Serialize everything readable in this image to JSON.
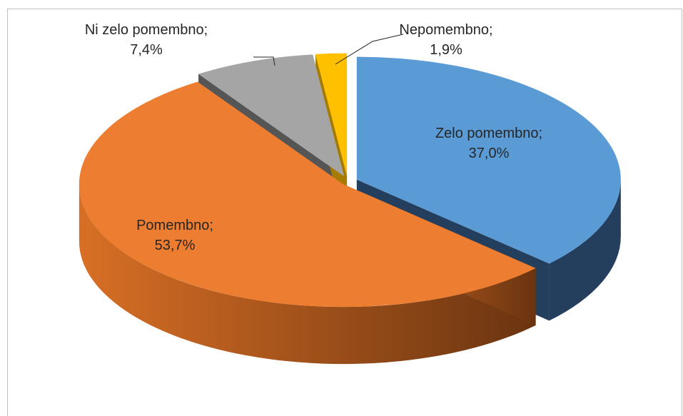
{
  "chart_data": {
    "type": "pie",
    "categories": [
      "Zelo pomembno",
      "Pomembno",
      "Ni zelo pomembno",
      "Nepomembno"
    ],
    "values": [
      37.0,
      53.7,
      7.4,
      1.9
    ],
    "value_labels": [
      "37,0%",
      "53,7%",
      "7,4%",
      "1,9%"
    ],
    "label_separator": ";",
    "colors": [
      "#5b9bd5",
      "#ed7d31",
      "#a5a5a5",
      "#ffc000"
    ]
  }
}
